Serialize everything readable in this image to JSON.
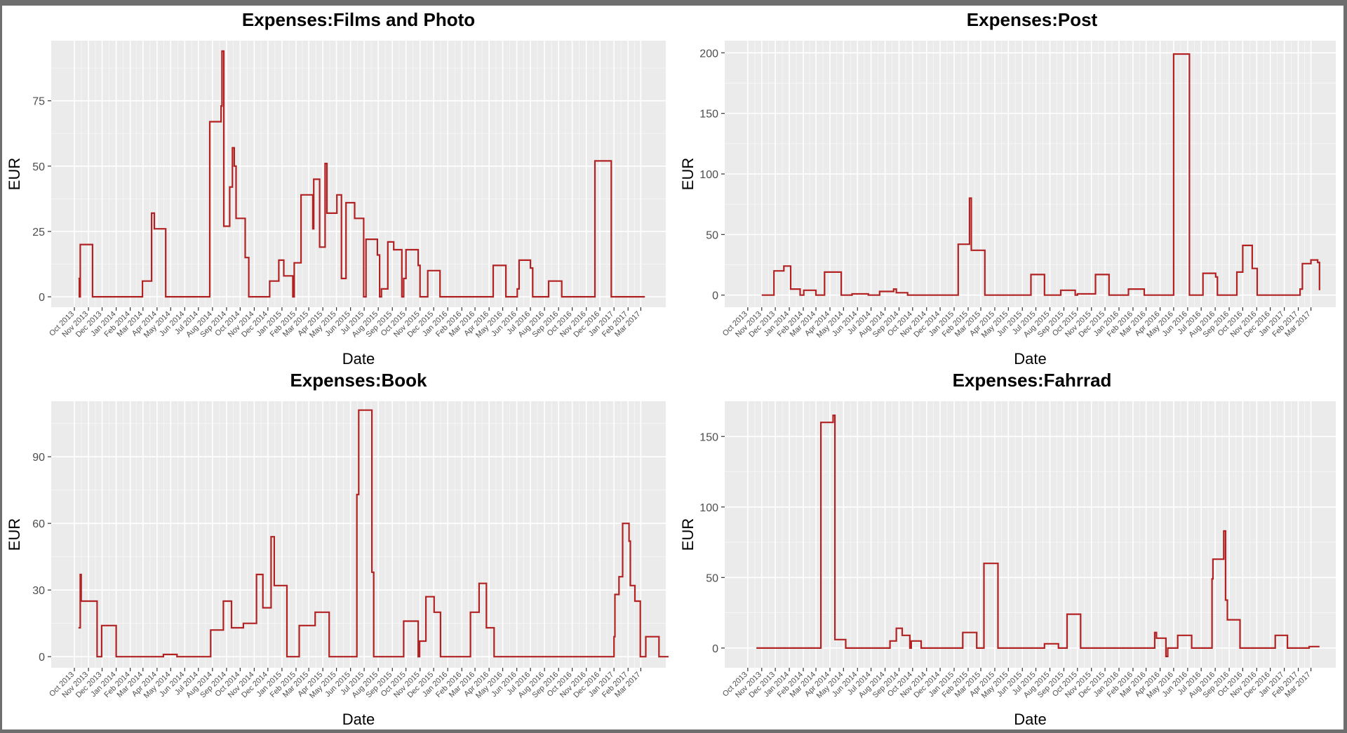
{
  "chart_data": [
    {
      "type": "line",
      "title": "Expenses:Films and Photo",
      "xlabel": "Date",
      "ylabel": "EUR",
      "ylim": [
        -4,
        98
      ],
      "yticks": [
        0,
        25,
        50,
        75
      ],
      "color": "#b22222",
      "grid": true,
      "steps": [
        [
          "2013-10-10",
          7
        ],
        [
          "2013-10-12",
          0
        ],
        [
          "2013-10-14",
          20
        ],
        [
          "2013-11-10",
          0
        ],
        [
          "2014-02-28",
          6
        ],
        [
          "2014-03-20",
          32
        ],
        [
          "2014-03-26",
          26
        ],
        [
          "2014-04-20",
          0
        ],
        [
          "2014-07-26",
          67
        ],
        [
          "2014-08-20",
          73
        ],
        [
          "2014-08-22",
          94
        ],
        [
          "2014-08-26",
          27
        ],
        [
          "2014-09-08",
          42
        ],
        [
          "2014-09-14",
          57
        ],
        [
          "2014-09-18",
          50
        ],
        [
          "2014-09-22",
          30
        ],
        [
          "2014-10-12",
          15
        ],
        [
          "2014-10-20",
          0
        ],
        [
          "2014-12-05",
          6
        ],
        [
          "2014-12-25",
          14
        ],
        [
          "2015-01-05",
          8
        ],
        [
          "2015-01-25",
          0
        ],
        [
          "2015-01-28",
          13
        ],
        [
          "2015-02-12",
          39
        ],
        [
          "2015-03-10",
          26
        ],
        [
          "2015-03-12",
          45
        ],
        [
          "2015-03-25",
          19
        ],
        [
          "2015-04-06",
          51
        ],
        [
          "2015-04-10",
          32
        ],
        [
          "2015-05-02",
          39
        ],
        [
          "2015-05-12",
          7
        ],
        [
          "2015-05-22",
          36
        ],
        [
          "2015-06-10",
          30
        ],
        [
          "2015-06-30",
          0
        ],
        [
          "2015-07-05",
          22
        ],
        [
          "2015-07-30",
          16
        ],
        [
          "2015-08-04",
          0
        ],
        [
          "2015-08-08",
          3
        ],
        [
          "2015-08-22",
          21
        ],
        [
          "2015-09-04",
          18
        ],
        [
          "2015-09-22",
          0
        ],
        [
          "2015-09-26",
          7
        ],
        [
          "2015-10-01",
          18
        ],
        [
          "2015-10-28",
          12
        ],
        [
          "2015-11-01",
          0
        ],
        [
          "2015-11-18",
          10
        ],
        [
          "2015-12-15",
          0
        ],
        [
          "2016-04-10",
          12
        ],
        [
          "2016-05-08",
          0
        ],
        [
          "2016-06-02",
          3
        ],
        [
          "2016-06-06",
          14
        ],
        [
          "2016-07-01",
          11
        ],
        [
          "2016-07-06",
          0
        ],
        [
          "2016-08-10",
          6
        ],
        [
          "2016-09-08",
          0
        ],
        [
          "2016-11-20",
          52
        ],
        [
          "2016-12-26",
          0
        ],
        [
          "2017-03-10",
          0
        ]
      ]
    },
    {
      "type": "line",
      "title": "Expenses:Post",
      "xlabel": "Date",
      "ylabel": "EUR",
      "ylim": [
        -10,
        210
      ],
      "yticks": [
        0,
        50,
        100,
        150,
        200
      ],
      "color": "#b22222",
      "grid": true,
      "steps": [
        [
          "2013-11-01",
          0
        ],
        [
          "2013-11-28",
          20
        ],
        [
          "2013-12-20",
          24
        ],
        [
          "2014-01-04",
          5
        ],
        [
          "2014-01-25",
          0
        ],
        [
          "2014-02-02",
          4
        ],
        [
          "2014-03-01",
          0
        ],
        [
          "2014-03-20",
          19
        ],
        [
          "2014-04-26",
          0
        ],
        [
          "2014-05-20",
          1
        ],
        [
          "2014-06-25",
          0
        ],
        [
          "2014-07-20",
          3
        ],
        [
          "2014-08-20",
          5
        ],
        [
          "2014-08-26",
          2
        ],
        [
          "2014-09-20",
          0
        ],
        [
          "2015-01-10",
          42
        ],
        [
          "2015-02-04",
          80
        ],
        [
          "2015-02-08",
          37
        ],
        [
          "2015-03-10",
          0
        ],
        [
          "2015-06-20",
          17
        ],
        [
          "2015-07-20",
          0
        ],
        [
          "2015-08-25",
          4
        ],
        [
          "2015-09-26",
          0
        ],
        [
          "2015-10-01",
          1
        ],
        [
          "2015-11-10",
          17
        ],
        [
          "2015-12-10",
          0
        ],
        [
          "2016-01-22",
          5
        ],
        [
          "2016-02-26",
          0
        ],
        [
          "2016-05-01",
          199
        ],
        [
          "2016-06-05",
          0
        ],
        [
          "2016-07-05",
          18
        ],
        [
          "2016-08-02",
          15
        ],
        [
          "2016-08-06",
          0
        ],
        [
          "2016-09-18",
          19
        ],
        [
          "2016-10-01",
          41
        ],
        [
          "2016-10-22",
          22
        ],
        [
          "2016-11-02",
          0
        ],
        [
          "2017-02-05",
          5
        ],
        [
          "2017-02-10",
          26
        ],
        [
          "2017-03-01",
          29
        ],
        [
          "2017-03-16",
          27
        ],
        [
          "2017-03-20",
          4
        ]
      ]
    },
    {
      "type": "line",
      "title": "Expenses:Book",
      "xlabel": "Date",
      "ylabel": "EUR",
      "ylim": [
        -5,
        115
      ],
      "yticks": [
        0,
        30,
        60,
        90
      ],
      "color": "#b22222",
      "grid": true,
      "steps": [
        [
          "2013-10-10",
          13
        ],
        [
          "2013-10-14",
          37
        ],
        [
          "2013-10-16",
          25
        ],
        [
          "2013-11-20",
          0
        ],
        [
          "2013-11-30",
          14
        ],
        [
          "2014-01-01",
          0
        ],
        [
          "2014-04-15",
          1
        ],
        [
          "2014-05-15",
          0
        ],
        [
          "2014-07-28",
          12
        ],
        [
          "2014-08-25",
          25
        ],
        [
          "2014-09-12",
          13
        ],
        [
          "2014-10-08",
          15
        ],
        [
          "2014-11-06",
          37
        ],
        [
          "2014-11-20",
          22
        ],
        [
          "2014-12-08",
          54
        ],
        [
          "2014-12-15",
          32
        ],
        [
          "2015-01-12",
          0
        ],
        [
          "2015-02-08",
          14
        ],
        [
          "2015-03-15",
          20
        ],
        [
          "2015-04-15",
          0
        ],
        [
          "2015-06-15",
          73
        ],
        [
          "2015-06-19",
          111
        ],
        [
          "2015-07-18",
          38
        ],
        [
          "2015-07-22",
          0
        ],
        [
          "2015-09-26",
          16
        ],
        [
          "2015-10-28",
          0
        ],
        [
          "2015-10-31",
          7
        ],
        [
          "2015-11-14",
          27
        ],
        [
          "2015-12-02",
          20
        ],
        [
          "2015-12-16",
          0
        ],
        [
          "2016-02-20",
          20
        ],
        [
          "2016-03-10",
          33
        ],
        [
          "2016-03-26",
          13
        ],
        [
          "2016-04-12",
          0
        ],
        [
          "2017-01-01",
          9
        ],
        [
          "2017-01-03",
          28
        ],
        [
          "2017-01-12",
          36
        ],
        [
          "2017-01-20",
          60
        ],
        [
          "2017-02-03",
          52
        ],
        [
          "2017-02-06",
          32
        ],
        [
          "2017-02-16",
          25
        ],
        [
          "2017-02-28",
          0
        ],
        [
          "2017-03-12",
          9
        ],
        [
          "2017-04-10",
          0
        ],
        [
          "2017-05-01",
          0
        ]
      ]
    },
    {
      "type": "line",
      "title": "Expenses:Fahrrad",
      "xlabel": "Date",
      "ylabel": "EUR",
      "ylim": [
        -14,
        175
      ],
      "yticks": [
        0,
        50,
        100,
        150
      ],
      "color": "#b22222",
      "grid": true,
      "steps": [
        [
          "2013-10-20",
          0
        ],
        [
          "2014-03-12",
          160
        ],
        [
          "2014-04-08",
          165
        ],
        [
          "2014-04-12",
          6
        ],
        [
          "2014-05-06",
          0
        ],
        [
          "2014-08-12",
          5
        ],
        [
          "2014-08-26",
          14
        ],
        [
          "2014-09-08",
          9
        ],
        [
          "2014-09-25",
          0
        ],
        [
          "2014-09-28",
          5
        ],
        [
          "2014-10-20",
          0
        ],
        [
          "2015-01-20",
          11
        ],
        [
          "2015-02-20",
          0
        ],
        [
          "2015-03-08",
          60
        ],
        [
          "2015-04-08",
          0
        ],
        [
          "2015-07-20",
          3
        ],
        [
          "2015-08-20",
          0
        ],
        [
          "2015-09-08",
          24
        ],
        [
          "2015-10-08",
          0
        ],
        [
          "2016-03-20",
          11
        ],
        [
          "2016-03-24",
          7
        ],
        [
          "2016-04-14",
          -6
        ],
        [
          "2016-04-18",
          0
        ],
        [
          "2016-05-10",
          9
        ],
        [
          "2016-06-10",
          0
        ],
        [
          "2016-07-25",
          49
        ],
        [
          "2016-07-27",
          63
        ],
        [
          "2016-08-20",
          83
        ],
        [
          "2016-08-24",
          34
        ],
        [
          "2016-08-28",
          20
        ],
        [
          "2016-09-25",
          0
        ],
        [
          "2016-12-12",
          9
        ],
        [
          "2017-01-08",
          0
        ],
        [
          "2017-02-25",
          1
        ],
        [
          "2017-03-20",
          1
        ]
      ]
    }
  ],
  "x_axis": {
    "ticks": [
      "2013-10-01",
      "2013-11-01",
      "2013-12-01",
      "2014-01-01",
      "2014-02-01",
      "2014-03-01",
      "2014-04-01",
      "2014-05-01",
      "2014-06-01",
      "2014-07-01",
      "2014-08-01",
      "2014-09-01",
      "2014-10-01",
      "2014-11-01",
      "2014-12-01",
      "2015-01-01",
      "2015-02-01",
      "2015-03-01",
      "2015-04-01",
      "2015-05-01",
      "2015-06-01",
      "2015-07-01",
      "2015-08-01",
      "2015-09-01",
      "2015-10-01",
      "2015-11-01",
      "2015-12-01",
      "2016-01-01",
      "2016-02-01",
      "2016-03-01",
      "2016-04-01",
      "2016-05-01",
      "2016-06-01",
      "2016-07-01",
      "2016-08-01",
      "2016-09-01",
      "2016-10-01",
      "2016-11-01",
      "2016-12-01",
      "2017-01-01",
      "2017-02-01",
      "2017-03-01"
    ],
    "tick_labels": [
      "Oct 2013",
      "Nov 2013",
      "Dec 2013",
      "Jan 2014",
      "Feb 2014",
      "Mar 2014",
      "Apr 2014",
      "May 2014",
      "Jun 2014",
      "Jul 2014",
      "Aug 2014",
      "Sep 2014",
      "Oct 2014",
      "Nov 2014",
      "Dec 2014",
      "Jan 2015",
      "Feb 2015",
      "Mar 2015",
      "Apr 2015",
      "May 2015",
      "Jun 2015",
      "Jul 2015",
      "Aug 2015",
      "Sep 2015",
      "Oct 2015",
      "Nov 2015",
      "Dec 2015",
      "Jan 2016",
      "Feb 2016",
      "Mar 2016",
      "Apr 2016",
      "May 2016",
      "Jun 2016",
      "Jul 2016",
      "Aug 2016",
      "Sep 2016",
      "Oct 2016",
      "Nov 2016",
      "Dec 2016",
      "Jan 2017",
      "Feb 2017",
      "Mar 2017"
    ]
  }
}
